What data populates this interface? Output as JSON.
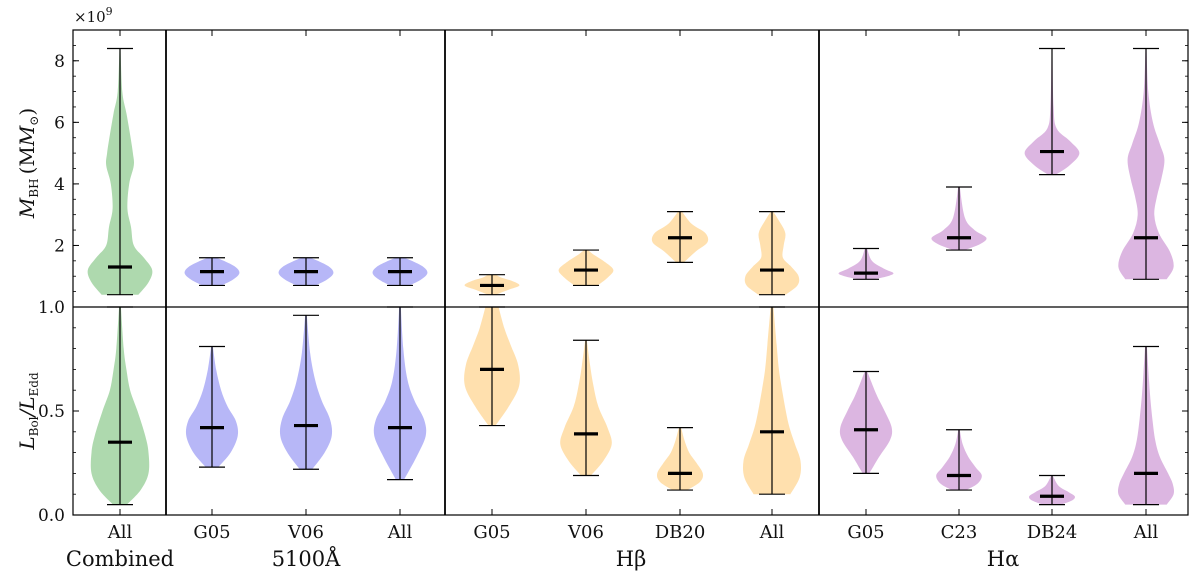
{
  "colors": {
    "Combined": "#6cba6c",
    "5100Å": "#7b7bf0",
    "Hβ": "#ffc76b",
    "Hα": "#c07ac8",
    "whisker": "#000000",
    "median": "#000000"
  },
  "chart_data": {
    "type": "violin",
    "categories": [
      "All",
      "G05",
      "V06",
      "All",
      "G05",
      "V06",
      "DB20",
      "All",
      "G05",
      "C23",
      "DB24",
      "All"
    ],
    "groups": [
      {
        "name": "Combined",
        "color_key": "Combined",
        "indices": [
          0
        ]
      },
      {
        "name": "5100Å",
        "color_key": "5100Å",
        "indices": [
          1,
          2,
          3
        ]
      },
      {
        "name": "Hβ",
        "color_key": "Hβ",
        "indices": [
          4,
          5,
          6,
          7
        ]
      },
      {
        "name": "Hα",
        "color_key": "Hα",
        "indices": [
          8,
          9,
          10,
          11
        ]
      }
    ],
    "top_panel": {
      "ylabel_main": "M",
      "ylabel_sub": "BH",
      "ylabel_unit": "(M",
      "ylabel_unit_sub": "⊙",
      "ylabel_close": ")",
      "ylim": [
        0.0,
        9.0
      ],
      "yticks": [
        2,
        4,
        6,
        8
      ],
      "ytick_labels": [
        "2",
        "4",
        "6",
        "8"
      ],
      "scale_label": "×10",
      "scale_exp": "9",
      "series": [
        {
          "min": 0.4,
          "max": 8.4,
          "median": 1.3,
          "width": 1.0,
          "profile": [
            [
              0.4,
              0.4
            ],
            [
              0.8,
              0.62
            ],
            [
              1.2,
              0.7
            ],
            [
              1.6,
              0.52
            ],
            [
              2.0,
              0.3
            ],
            [
              2.6,
              0.24
            ],
            [
              3.2,
              0.16
            ],
            [
              4.0,
              0.2
            ],
            [
              4.6,
              0.3
            ],
            [
              5.0,
              0.28
            ],
            [
              5.6,
              0.22
            ],
            [
              6.3,
              0.14
            ],
            [
              7.0,
              0.05
            ],
            [
              8.4,
              0.01
            ]
          ]
        },
        {
          "min": 0.7,
          "max": 1.6,
          "median": 1.15,
          "width": 0.85,
          "profile": [
            [
              0.7,
              0.25
            ],
            [
              0.9,
              0.55
            ],
            [
              1.1,
              0.7
            ],
            [
              1.3,
              0.6
            ],
            [
              1.5,
              0.3
            ],
            [
              1.6,
              0.1
            ]
          ]
        },
        {
          "min": 0.7,
          "max": 1.6,
          "median": 1.15,
          "width": 0.85,
          "profile": [
            [
              0.7,
              0.25
            ],
            [
              0.9,
              0.55
            ],
            [
              1.1,
              0.7
            ],
            [
              1.3,
              0.6
            ],
            [
              1.5,
              0.3
            ],
            [
              1.6,
              0.1
            ]
          ]
        },
        {
          "min": 0.7,
          "max": 1.6,
          "median": 1.15,
          "width": 0.85,
          "profile": [
            [
              0.7,
              0.25
            ],
            [
              0.9,
              0.55
            ],
            [
              1.1,
              0.7
            ],
            [
              1.3,
              0.6
            ],
            [
              1.5,
              0.3
            ],
            [
              1.6,
              0.1
            ]
          ]
        },
        {
          "min": 0.4,
          "max": 1.05,
          "median": 0.7,
          "width": 0.85,
          "profile": [
            [
              0.4,
              0.1
            ],
            [
              0.55,
              0.4
            ],
            [
              0.7,
              0.7
            ],
            [
              0.85,
              0.5
            ],
            [
              0.95,
              0.25
            ],
            [
              1.05,
              0.1
            ]
          ]
        },
        {
          "min": 0.7,
          "max": 1.85,
          "median": 1.2,
          "width": 0.85,
          "profile": [
            [
              0.7,
              0.3
            ],
            [
              0.95,
              0.55
            ],
            [
              1.2,
              0.7
            ],
            [
              1.45,
              0.5
            ],
            [
              1.7,
              0.2
            ],
            [
              1.85,
              0.05
            ]
          ]
        },
        {
          "min": 1.45,
          "max": 3.1,
          "median": 2.25,
          "width": 0.85,
          "profile": [
            [
              1.45,
              0.1
            ],
            [
              1.8,
              0.4
            ],
            [
              2.1,
              0.7
            ],
            [
              2.4,
              0.65
            ],
            [
              2.7,
              0.3
            ],
            [
              3.1,
              0.05
            ]
          ]
        },
        {
          "min": 0.4,
          "max": 3.1,
          "median": 1.2,
          "width": 0.85,
          "profile": [
            [
              0.4,
              0.35
            ],
            [
              0.7,
              0.65
            ],
            [
              1.0,
              0.68
            ],
            [
              1.3,
              0.5
            ],
            [
              1.6,
              0.28
            ],
            [
              2.0,
              0.3
            ],
            [
              2.4,
              0.34
            ],
            [
              2.8,
              0.18
            ],
            [
              3.1,
              0.03
            ]
          ]
        },
        {
          "min": 0.9,
          "max": 1.9,
          "median": 1.1,
          "width": 0.85,
          "profile": [
            [
              0.9,
              0.2
            ],
            [
              1.0,
              0.55
            ],
            [
              1.1,
              0.7
            ],
            [
              1.25,
              0.45
            ],
            [
              1.5,
              0.15
            ],
            [
              1.9,
              0.03
            ]
          ]
        },
        {
          "min": 1.85,
          "max": 3.9,
          "median": 2.25,
          "width": 0.85,
          "profile": [
            [
              1.85,
              0.15
            ],
            [
              2.05,
              0.55
            ],
            [
              2.25,
              0.7
            ],
            [
              2.5,
              0.4
            ],
            [
              2.9,
              0.15
            ],
            [
              3.9,
              0.02
            ]
          ]
        },
        {
          "min": 4.3,
          "max": 8.4,
          "median": 5.05,
          "width": 0.85,
          "profile": [
            [
              4.3,
              0.1
            ],
            [
              4.6,
              0.45
            ],
            [
              5.0,
              0.7
            ],
            [
              5.4,
              0.45
            ],
            [
              5.8,
              0.12
            ],
            [
              6.5,
              0.04
            ],
            [
              8.4,
              0.01
            ]
          ]
        },
        {
          "min": 0.9,
          "max": 8.4,
          "median": 2.25,
          "width": 1.0,
          "profile": [
            [
              0.9,
              0.45
            ],
            [
              1.3,
              0.6
            ],
            [
              1.8,
              0.52
            ],
            [
              2.4,
              0.28
            ],
            [
              3.0,
              0.18
            ],
            [
              3.6,
              0.24
            ],
            [
              4.2,
              0.34
            ],
            [
              4.8,
              0.4
            ],
            [
              5.3,
              0.3
            ],
            [
              6.0,
              0.15
            ],
            [
              7.0,
              0.05
            ],
            [
              8.4,
              0.01
            ]
          ]
        }
      ]
    },
    "bottom_panel": {
      "ylabel_main": "L",
      "ylabel_sub1": "Bol",
      "ylabel_sep": "/L",
      "ylabel_sub2": "Edd",
      "ylim": [
        0.0,
        1.0
      ],
      "yticks": [
        0.0,
        0.5,
        1.0
      ],
      "ytick_labels": [
        "0.0",
        "0.5",
        "1.0"
      ],
      "series": [
        {
          "min": 0.05,
          "max": 1.0,
          "median": 0.35,
          "width": 1.0,
          "profile": [
            [
              0.05,
              0.15
            ],
            [
              0.12,
              0.45
            ],
            [
              0.2,
              0.62
            ],
            [
              0.3,
              0.62
            ],
            [
              0.38,
              0.55
            ],
            [
              0.5,
              0.38
            ],
            [
              0.6,
              0.22
            ],
            [
              0.7,
              0.14
            ],
            [
              0.8,
              0.08
            ],
            [
              1.0,
              0.02
            ]
          ]
        },
        {
          "min": 0.23,
          "max": 0.81,
          "median": 0.42,
          "width": 0.9,
          "profile": [
            [
              0.23,
              0.15
            ],
            [
              0.3,
              0.45
            ],
            [
              0.38,
              0.62
            ],
            [
              0.45,
              0.58
            ],
            [
              0.52,
              0.38
            ],
            [
              0.6,
              0.22
            ],
            [
              0.7,
              0.1
            ],
            [
              0.81,
              0.02
            ]
          ]
        },
        {
          "min": 0.22,
          "max": 0.96,
          "median": 0.43,
          "width": 0.9,
          "profile": [
            [
              0.22,
              0.15
            ],
            [
              0.3,
              0.45
            ],
            [
              0.38,
              0.62
            ],
            [
              0.46,
              0.58
            ],
            [
              0.55,
              0.38
            ],
            [
              0.65,
              0.22
            ],
            [
              0.78,
              0.1
            ],
            [
              0.96,
              0.02
            ]
          ]
        },
        {
          "min": 0.17,
          "max": 1.0,
          "median": 0.42,
          "width": 0.9,
          "profile": [
            [
              0.17,
              0.1
            ],
            [
              0.28,
              0.4
            ],
            [
              0.38,
              0.62
            ],
            [
              0.46,
              0.58
            ],
            [
              0.55,
              0.35
            ],
            [
              0.65,
              0.18
            ],
            [
              0.8,
              0.08
            ],
            [
              1.0,
              0.02
            ]
          ]
        },
        {
          "min": 0.43,
          "max": 1.0,
          "median": 0.7,
          "width": 0.95,
          "profile": [
            [
              0.43,
              0.08
            ],
            [
              0.52,
              0.38
            ],
            [
              0.62,
              0.62
            ],
            [
              0.72,
              0.6
            ],
            [
              0.82,
              0.42
            ],
            [
              0.9,
              0.28
            ],
            [
              1.0,
              0.15
            ]
          ]
        },
        {
          "min": 0.19,
          "max": 0.84,
          "median": 0.39,
          "width": 0.9,
          "profile": [
            [
              0.19,
              0.12
            ],
            [
              0.26,
              0.42
            ],
            [
              0.34,
              0.62
            ],
            [
              0.42,
              0.52
            ],
            [
              0.52,
              0.3
            ],
            [
              0.62,
              0.18
            ],
            [
              0.72,
              0.1
            ],
            [
              0.84,
              0.02
            ]
          ]
        },
        {
          "min": 0.12,
          "max": 0.42,
          "median": 0.2,
          "width": 0.8,
          "profile": [
            [
              0.12,
              0.2
            ],
            [
              0.16,
              0.55
            ],
            [
              0.2,
              0.62
            ],
            [
              0.25,
              0.45
            ],
            [
              0.3,
              0.25
            ],
            [
              0.36,
              0.12
            ],
            [
              0.42,
              0.03
            ]
          ]
        },
        {
          "min": 0.1,
          "max": 1.0,
          "median": 0.4,
          "width": 1.0,
          "profile": [
            [
              0.1,
              0.4
            ],
            [
              0.18,
              0.6
            ],
            [
              0.26,
              0.62
            ],
            [
              0.34,
              0.5
            ],
            [
              0.42,
              0.38
            ],
            [
              0.5,
              0.3
            ],
            [
              0.6,
              0.22
            ],
            [
              0.7,
              0.15
            ],
            [
              0.82,
              0.1
            ],
            [
              1.0,
              0.03
            ]
          ]
        },
        {
          "min": 0.2,
          "max": 0.69,
          "median": 0.41,
          "width": 0.9,
          "profile": [
            [
              0.2,
              0.08
            ],
            [
              0.28,
              0.32
            ],
            [
              0.36,
              0.58
            ],
            [
              0.42,
              0.62
            ],
            [
              0.5,
              0.45
            ],
            [
              0.58,
              0.25
            ],
            [
              0.69,
              0.03
            ]
          ]
        },
        {
          "min": 0.12,
          "max": 0.41,
          "median": 0.19,
          "width": 0.8,
          "profile": [
            [
              0.12,
              0.2
            ],
            [
              0.15,
              0.5
            ],
            [
              0.19,
              0.62
            ],
            [
              0.23,
              0.45
            ],
            [
              0.28,
              0.25
            ],
            [
              0.34,
              0.1
            ],
            [
              0.41,
              0.02
            ]
          ]
        },
        {
          "min": 0.05,
          "max": 0.19,
          "median": 0.09,
          "width": 0.8,
          "profile": [
            [
              0.05,
              0.25
            ],
            [
              0.07,
              0.55
            ],
            [
              0.09,
              0.62
            ],
            [
              0.11,
              0.45
            ],
            [
              0.14,
              0.18
            ],
            [
              0.19,
              0.02
            ]
          ]
        },
        {
          "min": 0.05,
          "max": 0.81,
          "median": 0.2,
          "width": 1.0,
          "profile": [
            [
              0.05,
              0.45
            ],
            [
              0.1,
              0.6
            ],
            [
              0.15,
              0.58
            ],
            [
              0.2,
              0.48
            ],
            [
              0.28,
              0.3
            ],
            [
              0.36,
              0.2
            ],
            [
              0.46,
              0.14
            ],
            [
              0.6,
              0.08
            ],
            [
              0.81,
              0.02
            ]
          ]
        }
      ]
    },
    "group_labels": [
      "Combined",
      "5100Å",
      "Hβ",
      "Hα"
    ]
  }
}
